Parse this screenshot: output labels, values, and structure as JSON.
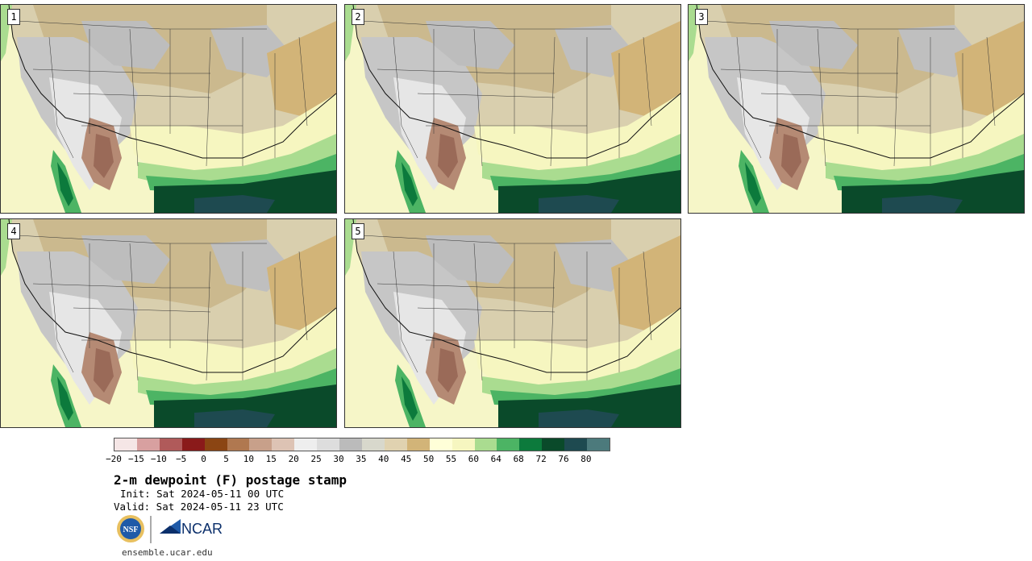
{
  "panels": [
    {
      "number": "1"
    },
    {
      "number": "2"
    },
    {
      "number": "3"
    },
    {
      "number": "4"
    },
    {
      "number": "5"
    }
  ],
  "colorbar": {
    "tick_labels": [
      "−20",
      "−15",
      "−10",
      "−5",
      "0",
      "5",
      "10",
      "15",
      "20",
      "25",
      "30",
      "35",
      "40",
      "45",
      "50",
      "55",
      "60",
      "64",
      "68",
      "72",
      "76",
      "80"
    ],
    "colors": [
      "#f5e6e6",
      "#d8a0a0",
      "#b05a5a",
      "#8a1a1a",
      "#8b4513",
      "#b07850",
      "#c8a08a",
      "#ddc3b4",
      "#eeeeee",
      "#dddddd",
      "#bbbbbb",
      "#d8d8cc",
      "#e0d2b0",
      "#d2b478",
      "#ffffd8",
      "#f6f6c0",
      "#aadc90",
      "#4cb464",
      "#0c7a3c",
      "#0a4a2a",
      "#1e4a50",
      "#4c7a7c"
    ]
  },
  "title": "2-m dewpoint (F) postage stamp",
  "init": "Init: Sat 2024-05-11 00 UTC",
  "valid": "Valid: Sat 2024-05-11 23 UTC",
  "logos": {
    "nsf": "NSF",
    "ncar": "NCAR"
  },
  "website": "ensemble.ucar.edu"
}
